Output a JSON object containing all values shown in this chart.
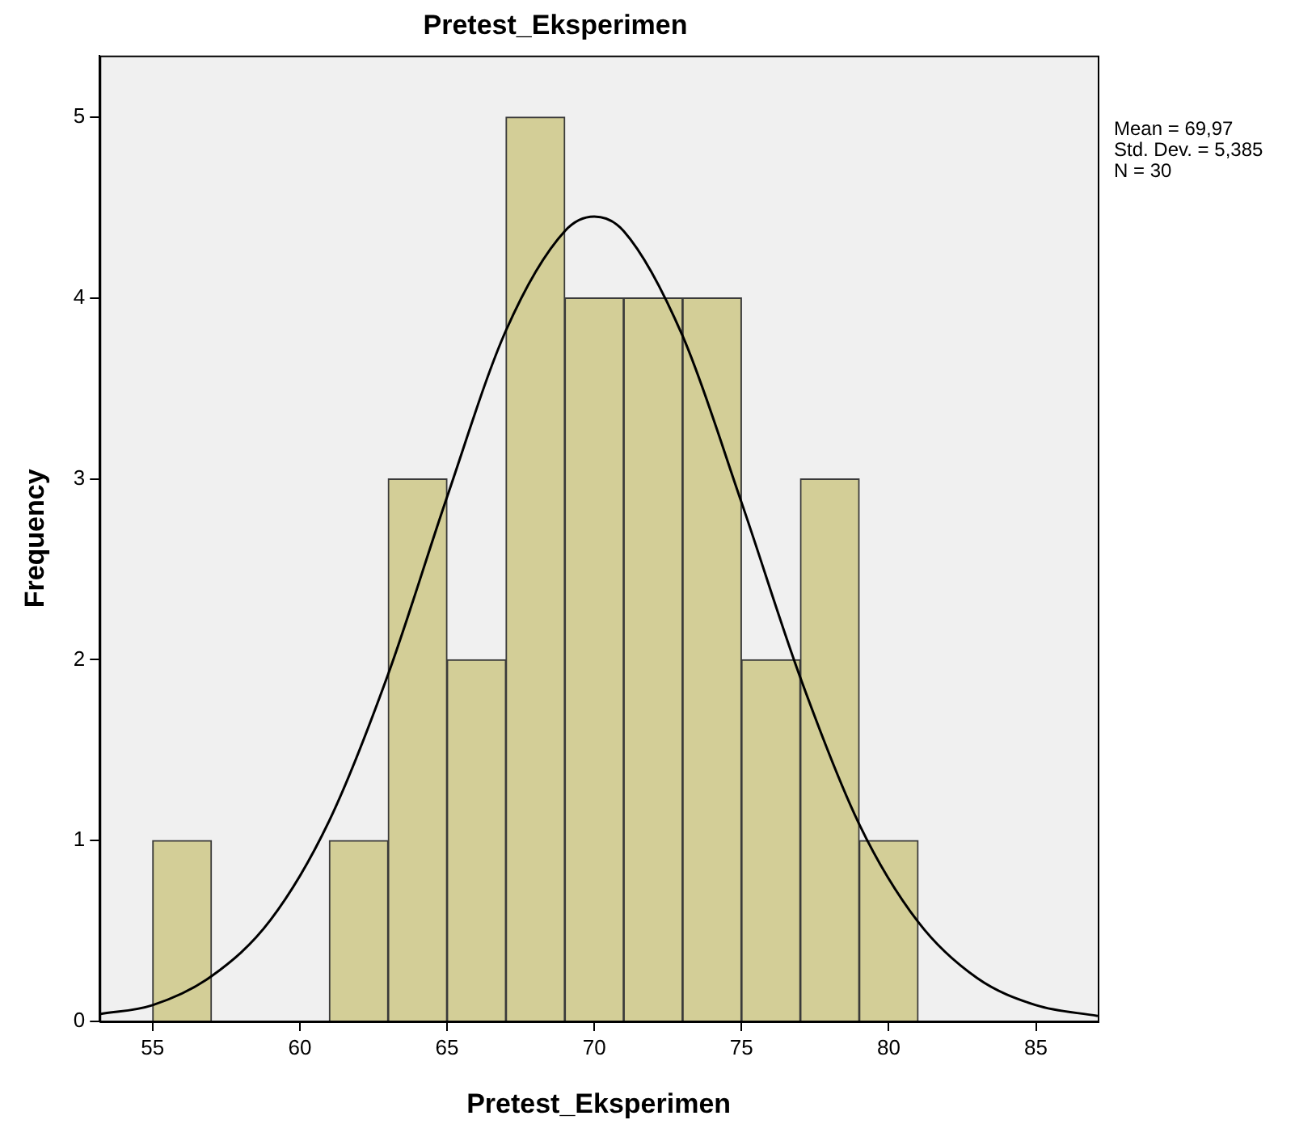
{
  "chart_data": {
    "type": "histogram",
    "title": "Pretest_Eksperimen",
    "xlabel": "Pretest_Eksperimen",
    "ylabel": "Frequency",
    "bins": [
      55,
      57,
      59,
      61,
      63,
      65,
      67,
      69,
      71,
      73,
      75,
      77,
      79,
      81
    ],
    "values": [
      1,
      0,
      0,
      1,
      3,
      2,
      5,
      4,
      4,
      4,
      2,
      3,
      1
    ],
    "color": "#d3ce97",
    "series": [
      {
        "type": "line",
        "color": "#000000",
        "x": [
          53.2,
          55,
          57,
          59,
          61,
          63,
          65,
          67,
          69,
          70,
          71,
          73,
          75,
          77,
          79,
          81,
          83,
          85,
          87.1
        ],
        "values": [
          0.04,
          0.09,
          0.25,
          0.56,
          1.11,
          1.92,
          2.9,
          3.82,
          4.37,
          4.45,
          4.37,
          3.79,
          2.87,
          1.9,
          1.09,
          0.55,
          0.24,
          0.09,
          0.03
        ]
      }
    ],
    "xlim": [
      53.2,
      87.1
    ],
    "xticks": [
      55,
      60,
      65,
      70,
      75,
      80,
      85
    ],
    "ylim": [
      0,
      5.34
    ],
    "yticks": [
      0,
      1,
      2,
      3,
      4,
      5
    ],
    "annotations": [
      "Mean = 69,97",
      "Std. Dev. = 5,385",
      "N = 30"
    ],
    "grid": false,
    "legend": false
  }
}
